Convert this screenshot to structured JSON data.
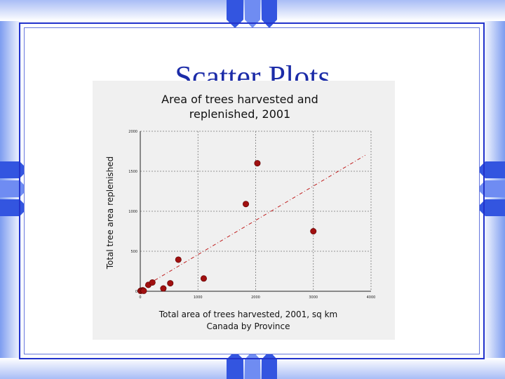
{
  "slide": {
    "title": "Scatter Plots"
  },
  "colors": {
    "accent": "#1c2ca8",
    "point": "#a01010",
    "trend": "#c02020"
  },
  "chart_data": {
    "type": "scatter",
    "title": "Area of trees harvested and replenished, 2001",
    "title_lines": [
      "Area of trees harvested and",
      "replenished, 2001"
    ],
    "xlabel": "Total area of trees harvested, 2001,  sq km",
    "xlabel_sub": "Canada by Province",
    "ylabel": "Total tree area replenished",
    "xlim": [
      0,
      4000
    ],
    "ylim": [
      0,
      2000
    ],
    "x_ticks": [
      "0",
      "1000",
      "2000",
      "3000",
      "4000"
    ],
    "y_ticks": [
      "0",
      "500",
      "1000",
      "1500",
      "2000"
    ],
    "grid": true,
    "trend_line": {
      "x": [
        0,
        3900
      ],
      "y": [
        30,
        1700
      ]
    },
    "points": [
      {
        "x": 5,
        "y": 5
      },
      {
        "x": 25,
        "y": 10
      },
      {
        "x": 50,
        "y": 10
      },
      {
        "x": 60,
        "y": 5
      },
      {
        "x": 140,
        "y": 80
      },
      {
        "x": 210,
        "y": 110
      },
      {
        "x": 400,
        "y": 35
      },
      {
        "x": 520,
        "y": 100
      },
      {
        "x": 660,
        "y": 395
      },
      {
        "x": 1100,
        "y": 160
      },
      {
        "x": 1830,
        "y": 1090
      },
      {
        "x": 2030,
        "y": 1600
      },
      {
        "x": 3000,
        "y": 750
      }
    ]
  }
}
